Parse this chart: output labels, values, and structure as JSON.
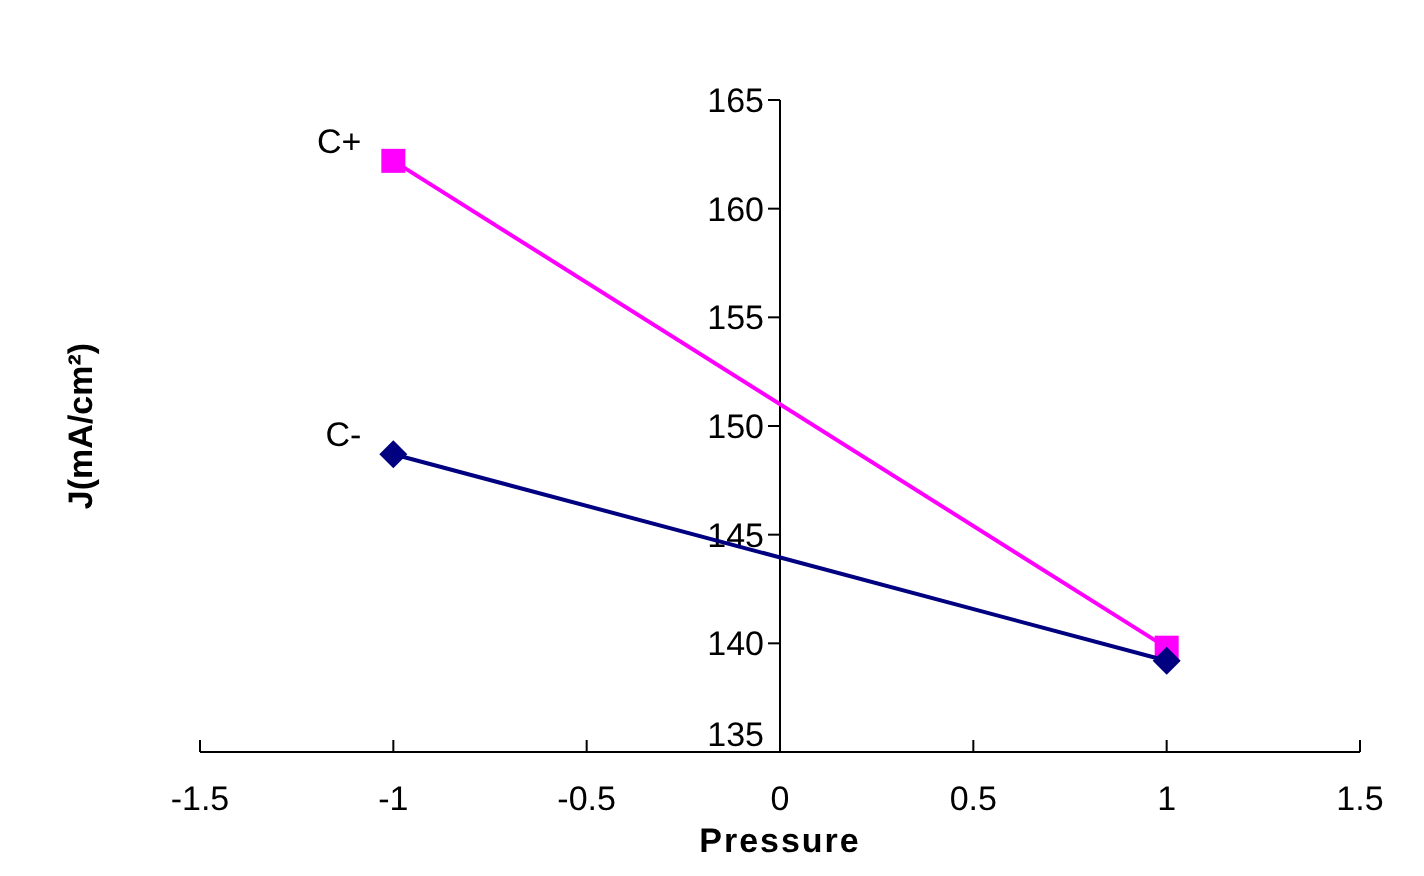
{
  "chart_data": {
    "type": "line",
    "xlabel": "Pressure",
    "ylabel": "J(mA/cm²)",
    "x": [
      -1,
      1
    ],
    "series": [
      {
        "name": "C+",
        "color": "#ff00ff",
        "values": [
          162.2,
          139.8
        ],
        "marker": "square"
      },
      {
        "name": "C-",
        "color": "#000080",
        "values": [
          148.7,
          139.2
        ],
        "marker": "diamond"
      }
    ],
    "xlim": [
      -1.5,
      1.5
    ],
    "xticks": [
      -1.5,
      -1,
      -0.5,
      0,
      0.5,
      1,
      1.5
    ],
    "ylim": [
      135,
      165
    ],
    "yticks": [
      135,
      140,
      145,
      150,
      155,
      160,
      165
    ],
    "grid": false
  }
}
